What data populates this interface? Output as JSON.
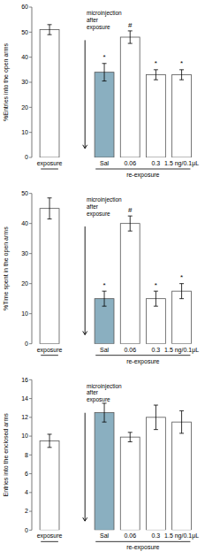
{
  "chart_data": [
    {
      "type": "bar",
      "ylabel": "%Entries into the open arms",
      "annotation": "microinjection\nafter\nexposure",
      "categories": [
        "exposure",
        "Sal",
        "0.06",
        "0.3",
        "1.5 ng/0.1μL"
      ],
      "group_label": "re-exposure",
      "values": [
        51,
        34,
        48,
        33,
        33
      ],
      "errors": [
        2.0,
        3.5,
        2.5,
        2.0,
        2.0
      ],
      "colors": [
        "#ffffff",
        "#8aafc0",
        "#ffffff",
        "#ffffff",
        "#ffffff"
      ],
      "bar_annotations": [
        null,
        "*",
        "#",
        "*",
        "*"
      ],
      "ylim": [
        0,
        60
      ],
      "yticks": [
        0,
        10,
        20,
        30,
        40,
        50,
        60
      ],
      "grid": false
    },
    {
      "type": "bar",
      "ylabel": "%Time spent in the open arms",
      "annotation": "microinjection\nafter\nexposure",
      "categories": [
        "exposure",
        "Sal",
        "0.06",
        "0.3",
        "1.5 ng/0.1μL"
      ],
      "group_label": "re-exposure",
      "values": [
        45,
        15,
        40,
        15,
        17.5
      ],
      "errors": [
        3.5,
        2.5,
        2.5,
        2.5,
        2.5
      ],
      "colors": [
        "#ffffff",
        "#8aafc0",
        "#ffffff",
        "#ffffff",
        "#ffffff"
      ],
      "bar_annotations": [
        null,
        "*",
        "#",
        "*",
        "*"
      ],
      "ylim": [
        0,
        50
      ],
      "yticks": [
        0,
        10,
        20,
        30,
        40,
        50
      ],
      "grid": false
    },
    {
      "type": "bar",
      "ylabel": "Entries into the enclosed arms",
      "annotation": "microinjection\nafter\nexposure",
      "categories": [
        "exposure",
        "Sal",
        "0.06",
        "0.3",
        "1.5 ng/0.1μL"
      ],
      "group_label": "re-exposure",
      "values": [
        9.5,
        12.5,
        9.9,
        12.0,
        11.5
      ],
      "errors": [
        0.7,
        1.0,
        0.5,
        1.3,
        1.2
      ],
      "colors": [
        "#ffffff",
        "#8aafc0",
        "#ffffff",
        "#ffffff",
        "#ffffff"
      ],
      "ylim": [
        0,
        16
      ],
      "yticks": [
        0,
        2,
        4,
        6,
        8,
        10,
        12,
        14,
        16
      ],
      "grid": false
    }
  ]
}
